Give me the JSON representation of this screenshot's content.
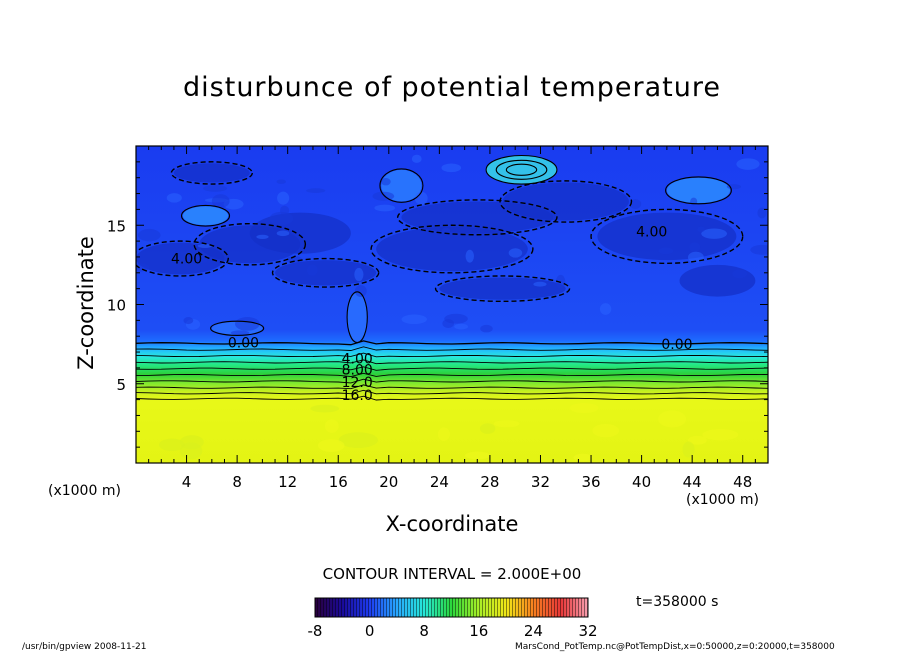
{
  "chart_data": {
    "type": "heatmap",
    "title": "disturbunce of potential temperature",
    "xlabel": "X-coordinate",
    "ylabel": "Z-coordinate",
    "x_unit_label": "(x1000 m)",
    "xlim": [
      0,
      50
    ],
    "ylim": [
      0,
      20
    ],
    "x_ticks": [
      "4",
      "8",
      "12",
      "16",
      "20",
      "24",
      "28",
      "32",
      "36",
      "40",
      "44",
      "48"
    ],
    "y_ticks": [
      "5",
      "10",
      "15"
    ],
    "contour_interval": "CONTOUR INTERVAL = 2.000E+00",
    "contour_labels": [
      {
        "text": "4.00",
        "x": 4.0,
        "z": 12.9
      },
      {
        "text": "4.00",
        "x": 40.8,
        "z": 14.6
      },
      {
        "text": "0.00",
        "x": 8.5,
        "z": 7.6
      },
      {
        "text": "0.00",
        "x": 42.8,
        "z": 7.5
      },
      {
        "text": "4.00",
        "x": 17.5,
        "z": 6.6
      },
      {
        "text": "8.00",
        "x": 17.5,
        "z": 5.9
      },
      {
        "text": "12.0",
        "x": 17.5,
        "z": 5.1
      },
      {
        "text": "16.0",
        "x": 17.5,
        "z": 4.3
      }
    ],
    "colorbar": {
      "min": -8,
      "max": 32,
      "tick_labels": [
        "-8",
        "0",
        "8",
        "16",
        "24",
        "32"
      ],
      "tick_values": [
        -8,
        0,
        8,
        16,
        24,
        32
      ]
    },
    "time_label": "t=358000 s",
    "field_summary": {
      "lower_layer_top_z": 4.0,
      "lower_layer_value": 22,
      "stable_transition_z": [
        4.0,
        7.6
      ],
      "upper_layer_typical_value": -2
    }
  },
  "footer": {
    "left": "/usr/bin/gpview   2008-11-21",
    "right": "MarsCond_PotTemp.nc@PotTempDist,x=0:50000,z=0:20000,t=358000"
  }
}
